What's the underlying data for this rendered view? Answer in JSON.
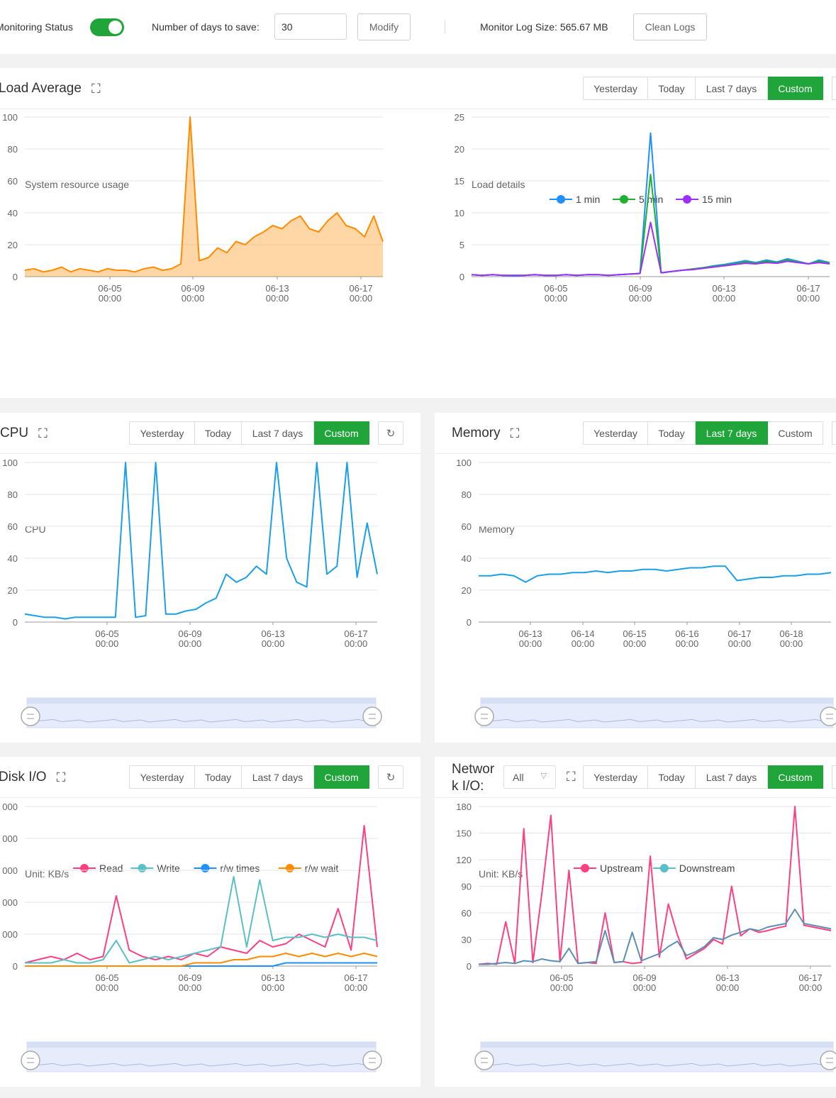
{
  "header": {
    "monitoring_label": "Monitoring Status",
    "monitoring_on": true,
    "days_label": "Number of days to save:",
    "days_value": "30",
    "modify_label": "Modify",
    "log_size_label": "Monitor Log Size: 565.67 MB",
    "clean_logs_label": "Clean Logs"
  },
  "colors": {
    "accent": "#20a53a",
    "orange": "#ff8c00",
    "blue": "#1e90ff",
    "cpu_blue": "#1a9fe8",
    "green": "#20b030",
    "purple": "#9b30ff",
    "pink": "#ff3f7f",
    "teal": "#5abfc8"
  },
  "load": {
    "title": "Load Average",
    "tabs": [
      "Yesterday",
      "Today",
      "Last 7 days",
      "Custom"
    ],
    "active_tab": "Custom",
    "left_chart_title": "System resource usage",
    "right_chart_title": "Load details",
    "legend": [
      "1 min",
      "5 min",
      "15 min"
    ]
  },
  "cpu": {
    "title": "CPU",
    "tabs": [
      "Yesterday",
      "Today",
      "Last 7 days",
      "Custom"
    ],
    "active_tab": "Custom",
    "chart_title": "CPU"
  },
  "memory": {
    "title": "Memory",
    "tabs": [
      "Yesterday",
      "Today",
      "Last 7 days",
      "Custom"
    ],
    "active_tab": "Last 7 days",
    "chart_title": "Memory"
  },
  "disk": {
    "title": "Disk I/O",
    "tabs": [
      "Yesterday",
      "Today",
      "Last 7 days",
      "Custom"
    ],
    "active_tab": "Custom",
    "unit": "Unit: KB/s",
    "legend": [
      "Read",
      "Write",
      "r/w times",
      "r/w wait"
    ]
  },
  "network": {
    "title_line1": "Networ",
    "title_line2": "k I/O:",
    "select_value": "All",
    "tabs": [
      "Yesterday",
      "Today",
      "Last 7 days",
      "Custom"
    ],
    "active_tab": "Custom",
    "unit": "Unit: KB/s",
    "legend": [
      "Upstream",
      "Downstream"
    ]
  },
  "chart_data": [
    {
      "type": "area",
      "title": "System resource usage",
      "x_ticks": [
        "06-05 00:00",
        "06-09 00:00",
        "06-13 00:00",
        "06-17 00:00"
      ],
      "ylim": [
        0,
        100
      ],
      "y_ticks": [
        0,
        20,
        40,
        60,
        80,
        100
      ],
      "series": [
        {
          "values": [
            4,
            5,
            3,
            4,
            6,
            3,
            5,
            4,
            3,
            5,
            4,
            4,
            3,
            5,
            6,
            4,
            5,
            8,
            100,
            10,
            12,
            18,
            15,
            22,
            20,
            25,
            28,
            32,
            30,
            35,
            38,
            30,
            28,
            35,
            40,
            32,
            30,
            25,
            38,
            22
          ]
        }
      ]
    },
    {
      "type": "line",
      "title": "Load details",
      "x_ticks": [
        "06-05 00:00",
        "06-09 00:00",
        "06-13 00:00",
        "06-17 00:00"
      ],
      "ylim": [
        0,
        25
      ],
      "y_ticks": [
        0,
        5,
        10,
        15,
        20,
        25
      ],
      "series": [
        {
          "name": "1 min",
          "values": [
            0.3,
            0.2,
            0.3,
            0.2,
            0.1,
            0.2,
            0.3,
            0.2,
            0.2,
            0.3,
            0.2,
            0.3,
            0.3,
            0.2,
            0.3,
            0.4,
            0.5,
            22.5,
            0.6,
            0.8,
            1.0,
            1.2,
            1.4,
            1.7,
            1.9,
            2.2,
            2.5,
            2.2,
            2.6,
            2.3,
            2.8,
            2.4,
            2.0,
            2.6,
            2.2
          ]
        },
        {
          "name": "5 min",
          "values": [
            0.3,
            0.2,
            0.3,
            0.2,
            0.2,
            0.2,
            0.3,
            0.2,
            0.2,
            0.3,
            0.2,
            0.3,
            0.3,
            0.2,
            0.3,
            0.4,
            0.5,
            16,
            0.6,
            0.8,
            1.0,
            1.2,
            1.4,
            1.6,
            1.8,
            2.0,
            2.3,
            2.1,
            2.4,
            2.2,
            2.6,
            2.3,
            2.0,
            2.4,
            2.1
          ]
        },
        {
          "name": "15 min",
          "values": [
            0.3,
            0.2,
            0.3,
            0.2,
            0.2,
            0.2,
            0.3,
            0.2,
            0.2,
            0.3,
            0.2,
            0.3,
            0.3,
            0.2,
            0.3,
            0.4,
            0.5,
            8.5,
            0.6,
            0.8,
            1.0,
            1.1,
            1.3,
            1.5,
            1.7,
            1.9,
            2.1,
            2.0,
            2.2,
            2.1,
            2.4,
            2.2,
            2.0,
            2.2,
            2.0
          ]
        }
      ]
    },
    {
      "type": "line",
      "title": "CPU",
      "x_ticks": [
        "06-05 00:00",
        "06-09 00:00",
        "06-13 00:00",
        "06-17 00:00"
      ],
      "ylim": [
        0,
        100
      ],
      "y_ticks": [
        0,
        20,
        40,
        60,
        80,
        100
      ],
      "series": [
        {
          "values": [
            5,
            4,
            3,
            3,
            2,
            3,
            3,
            3,
            3,
            3,
            100,
            3,
            4,
            100,
            5,
            5,
            7,
            8,
            12,
            15,
            30,
            25,
            28,
            35,
            30,
            100,
            40,
            25,
            22,
            100,
            30,
            35,
            100,
            28,
            62,
            30
          ]
        }
      ]
    },
    {
      "type": "line",
      "title": "Memory",
      "x_ticks": [
        "06-13 00:00",
        "06-14 00:00",
        "06-15 00:00",
        "06-16 00:00",
        "06-17 00:00",
        "06-18 00:00"
      ],
      "ylim": [
        0,
        100
      ],
      "y_ticks": [
        0,
        20,
        40,
        60,
        80,
        100
      ],
      "series": [
        {
          "values": [
            29,
            29,
            30,
            29,
            25,
            29,
            30,
            30,
            31,
            31,
            32,
            31,
            32,
            32,
            33,
            33,
            32,
            33,
            34,
            34,
            35,
            35,
            26,
            27,
            28,
            28,
            29,
            29,
            30,
            30,
            31
          ]
        }
      ]
    },
    {
      "type": "line",
      "title": "Disk I/O",
      "ylabel": "Unit: KB/s",
      "x_ticks": [
        "06-05 00:00",
        "06-09 00:00",
        "06-13 00:00",
        "06-17 00:00"
      ],
      "y_ticks": [
        0
      ],
      "series": [
        {
          "name": "Read",
          "values": [
            0.1,
            0.2,
            0.3,
            0.2,
            0.4,
            0.2,
            0.3,
            2.2,
            0.5,
            0.3,
            0.2,
            0.3,
            0.2,
            0.4,
            0.3,
            0.6,
            0.5,
            0.4,
            0.8,
            0.6,
            0.7,
            1.0,
            0.8,
            0.6,
            1.8,
            0.5,
            4.4,
            0.6
          ]
        },
        {
          "name": "Write",
          "values": [
            0.1,
            0.1,
            0.1,
            0.2,
            0.1,
            0.1,
            0.2,
            0.8,
            0.1,
            0.2,
            0.3,
            0.2,
            0.3,
            0.4,
            0.5,
            0.6,
            2.8,
            0.6,
            2.7,
            0.8,
            0.9,
            0.9,
            1.0,
            0.9,
            1.0,
            0.9,
            0.9,
            0.8
          ]
        },
        {
          "name": "r/w times",
          "values": [
            0.0,
            0.0,
            0.0,
            0.0,
            0.0,
            0.0,
            0.0,
            0.0,
            0.0,
            0.0,
            0.0,
            0.0,
            0.0,
            0.0,
            0.0,
            0.0,
            0.0,
            0.0,
            0.0,
            0.0,
            0.1,
            0.1,
            0.1,
            0.1,
            0.1,
            0.1,
            0.1,
            0.1
          ]
        },
        {
          "name": "r/w wait",
          "values": [
            0.0,
            0.0,
            0.0,
            0.0,
            0.0,
            0.0,
            0.0,
            0.0,
            0.0,
            0.0,
            0.0,
            0.0,
            0.0,
            0.1,
            0.1,
            0.1,
            0.2,
            0.2,
            0.3,
            0.3,
            0.4,
            0.3,
            0.4,
            0.3,
            0.4,
            0.3,
            0.4,
            0.3
          ]
        }
      ]
    },
    {
      "type": "line",
      "title": "Network I/O",
      "ylabel": "Unit: KB/s",
      "x_ticks": [
        "06-05 00:00",
        "06-09 00:00",
        "06-13 00:00",
        "06-17 00:00"
      ],
      "ylim": [
        0,
        180
      ],
      "y_ticks": [
        0,
        30,
        60,
        90,
        120,
        150,
        180
      ],
      "series": [
        {
          "name": "Upstream",
          "values": [
            2,
            3,
            2,
            50,
            3,
            155,
            4,
            82,
            170,
            5,
            108,
            3,
            4,
            3,
            60,
            4,
            5,
            3,
            4,
            124,
            10,
            70,
            35,
            8,
            14,
            20,
            30,
            25,
            90,
            34,
            42,
            38,
            40,
            43,
            45,
            180,
            46,
            44,
            42,
            40
          ]
        },
        {
          "name": "Downstream",
          "values": [
            2,
            2,
            3,
            4,
            3,
            6,
            5,
            8,
            6,
            5,
            20,
            3,
            4,
            5,
            40,
            4,
            5,
            38,
            6,
            10,
            14,
            22,
            28,
            12,
            16,
            22,
            32,
            30,
            35,
            38,
            42,
            40,
            44,
            46,
            48,
            64,
            48,
            46,
            44,
            42
          ]
        }
      ]
    }
  ]
}
